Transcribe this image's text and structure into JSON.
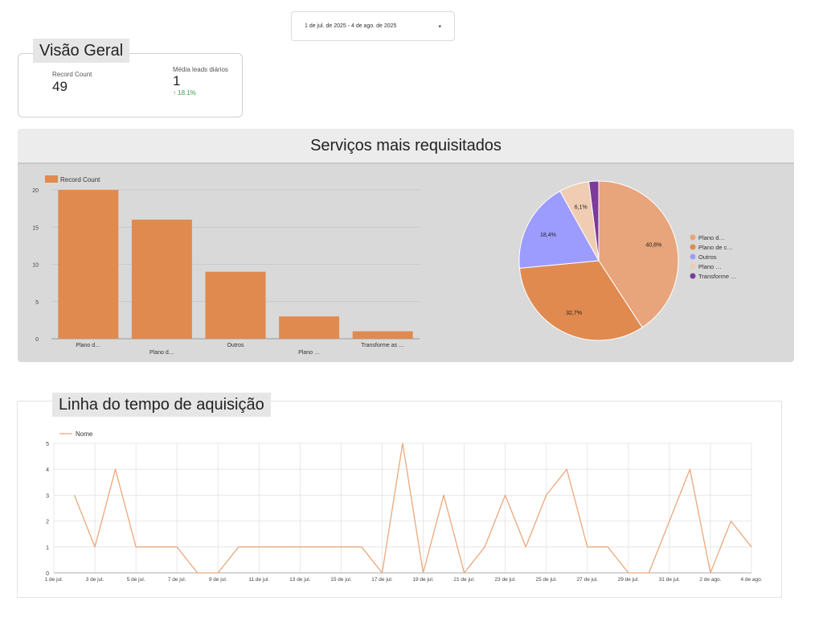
{
  "date_range": {
    "label": "1 de jul. de 2025 - 4 de ago. de 2025",
    "caret": "▾"
  },
  "overview": {
    "title": "Visão Geral",
    "metrics": [
      {
        "label": "Record Count",
        "value": "49"
      },
      {
        "label": "Média leads diários",
        "value": "1",
        "delta": "18.1%",
        "delta_direction": "up",
        "delta_color": "#3c9a4b"
      }
    ]
  },
  "services": {
    "title": "Serviços mais requisitados"
  },
  "timeline": {
    "title": "Linha do tempo de aquisição"
  },
  "chart_data": [
    {
      "type": "bar",
      "legend": [
        "Record Count"
      ],
      "legend_position": "top-left",
      "categories": [
        "Plano d…",
        "Plano d…",
        "Outros",
        "Plano …",
        "Transforme as …"
      ],
      "values": [
        20,
        16,
        9,
        3,
        1
      ],
      "ylim": [
        0,
        20
      ],
      "yticks": [
        0,
        5,
        10,
        15,
        20
      ],
      "color": "#e08a50",
      "grid": true
    },
    {
      "type": "pie",
      "labels": [
        "Plano d…",
        "Plano de c…",
        "Outros",
        "Plano …",
        "Transforme …"
      ],
      "values": [
        40.8,
        32.7,
        18.4,
        6.1,
        2.0
      ],
      "value_labels": [
        "40,8%",
        "32,7%",
        "18,4%",
        "6,1%",
        ""
      ],
      "colors": [
        "#e8a47a",
        "#e08a50",
        "#9c9cff",
        "#f0ccb2",
        "#7b3b9a"
      ],
      "legend_position": "right"
    },
    {
      "type": "line",
      "legend": [
        "Nome"
      ],
      "legend_position": "top-left",
      "color": "#eaa87c",
      "x_start": "1 de jul.",
      "xticks": [
        "1 de jul.",
        "3 de jul.",
        "5 de jul.",
        "7 de jul.",
        "9 de jul.",
        "11 de jul.",
        "13 de jul.",
        "15 de jul.",
        "17 de jul.",
        "19 de jul.",
        "21 de jul.",
        "23 de jul.",
        "25 de jul.",
        "27 de jul.",
        "29 de jul.",
        "31 de jul.",
        "2 de ago.",
        "4 de ago."
      ],
      "ylim": [
        0,
        5
      ],
      "yticks": [
        0,
        1,
        2,
        3,
        4,
        5
      ],
      "values": [
        3,
        1,
        4,
        1,
        1,
        1,
        0,
        0,
        1,
        1,
        1,
        1,
        1,
        1,
        1,
        0,
        5,
        0,
        3,
        0,
        1,
        3,
        1,
        3,
        4,
        1,
        1,
        0,
        0,
        2,
        4,
        0,
        2,
        1
      ],
      "grid": true
    }
  ]
}
